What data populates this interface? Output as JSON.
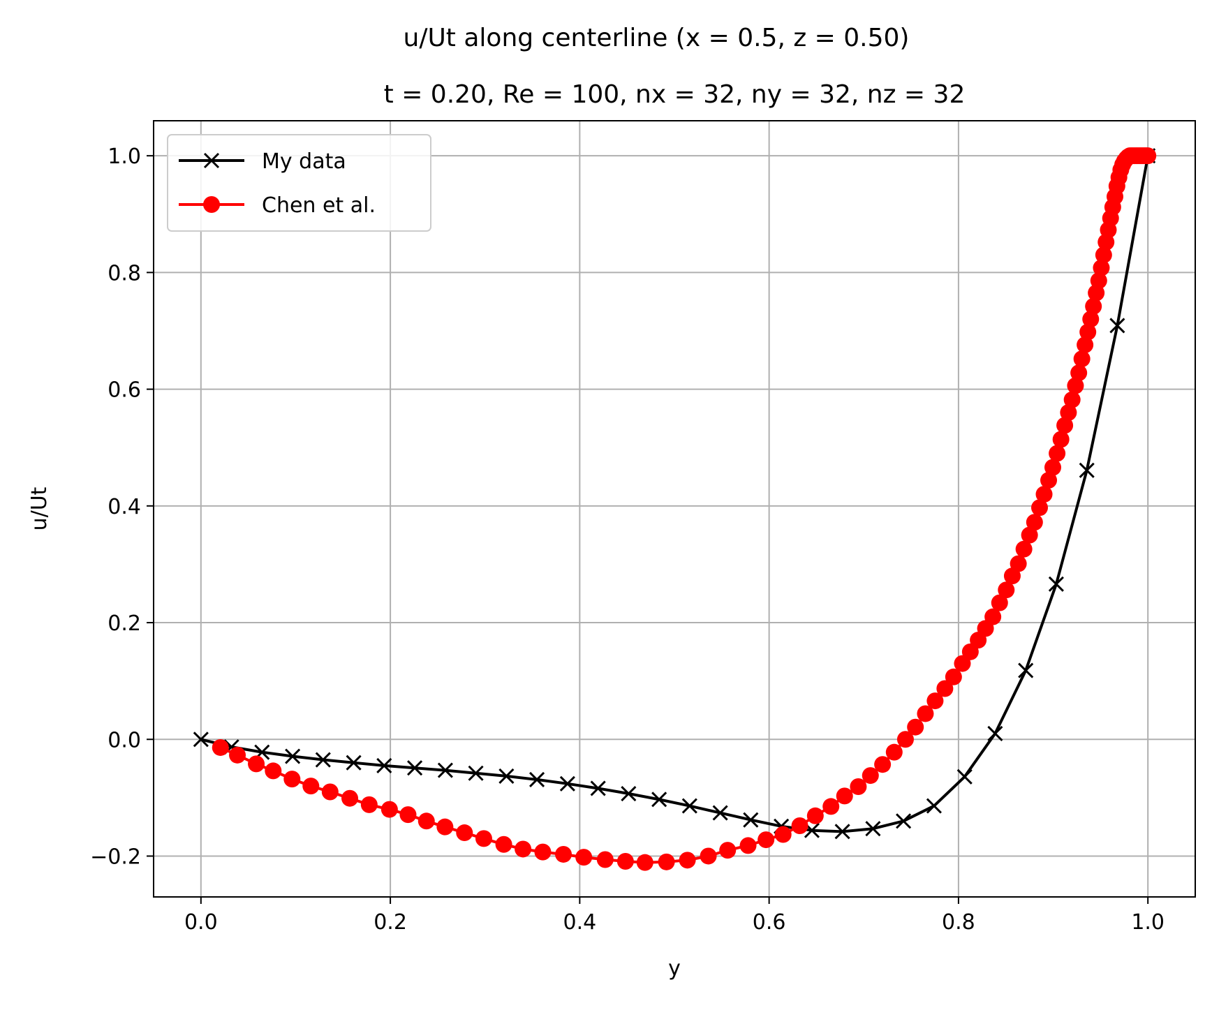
{
  "chart_data": {
    "type": "line",
    "title": "u/Ut along centerline (x = 0.5, z = 0.50)",
    "subtitle": "t = 0.20, Re = 100, nx = 32, ny = 32, nz = 32",
    "xlabel": "y",
    "ylabel": "u/Ut",
    "xlim": [
      -0.05,
      1.05
    ],
    "ylim": [
      -0.27,
      1.06
    ],
    "xticks": [
      0.0,
      0.2,
      0.4,
      0.6,
      0.8,
      1.0
    ],
    "xtick_labels": [
      "0.0",
      "0.2",
      "0.4",
      "0.6",
      "0.8",
      "1.0"
    ],
    "yticks": [
      -0.2,
      0.0,
      0.2,
      0.4,
      0.6,
      0.8,
      1.0
    ],
    "ytick_labels": [
      "−0.2",
      "0.0",
      "0.2",
      "0.4",
      "0.6",
      "0.8",
      "1.0"
    ],
    "grid": true,
    "legend_position": "top-left",
    "series": [
      {
        "name": "My data",
        "color": "#000000",
        "marker": "x",
        "x": [
          0.0,
          0.0323,
          0.0645,
          0.0968,
          0.129,
          0.1613,
          0.1935,
          0.2258,
          0.2581,
          0.2903,
          0.3226,
          0.3548,
          0.3871,
          0.4194,
          0.4516,
          0.4839,
          0.5161,
          0.5484,
          0.5806,
          0.6129,
          0.6452,
          0.6774,
          0.7097,
          0.7419,
          0.7742,
          0.8065,
          0.8387,
          0.871,
          0.9032,
          0.9355,
          0.9677,
          1.0
        ],
        "y": [
          0.0,
          -0.013,
          -0.022,
          -0.029,
          -0.035,
          -0.04,
          -0.045,
          -0.049,
          -0.053,
          -0.058,
          -0.063,
          -0.069,
          -0.076,
          -0.084,
          -0.093,
          -0.103,
          -0.114,
          -0.126,
          -0.138,
          -0.149,
          -0.156,
          -0.158,
          -0.153,
          -0.14,
          -0.114,
          -0.064,
          0.01,
          0.118,
          0.266,
          0.461,
          0.709,
          1.0
        ]
      },
      {
        "name": "Chen et al.",
        "color": "#ff0000",
        "marker": "o",
        "x": [
          0.0206,
          0.0385,
          0.0584,
          0.0763,
          0.0962,
          0.1161,
          0.1364,
          0.1572,
          0.1777,
          0.1991,
          0.2187,
          0.2381,
          0.2577,
          0.2783,
          0.2987,
          0.3198,
          0.3401,
          0.361,
          0.3828,
          0.4043,
          0.4269,
          0.4483,
          0.4689,
          0.4916,
          0.5137,
          0.5358,
          0.5562,
          0.5778,
          0.5967,
          0.6148,
          0.6324,
          0.6488,
          0.6653,
          0.6797,
          0.6942,
          0.707,
          0.7198,
          0.7321,
          0.744,
          0.7545,
          0.765,
          0.7753,
          0.7856,
          0.7948,
          0.8041,
          0.8125,
          0.8208,
          0.8285,
          0.8363,
          0.8434,
          0.8504,
          0.8568,
          0.8632,
          0.8691,
          0.875,
          0.8803,
          0.8856,
          0.8904,
          0.8952,
          0.8996,
          0.9041,
          0.9082,
          0.9122,
          0.9161,
          0.92,
          0.9235,
          0.927,
          0.9303,
          0.9336,
          0.9366,
          0.9396,
          0.9425,
          0.9454,
          0.9481,
          0.9508,
          0.9533,
          0.9558,
          0.9582,
          0.9606,
          0.9629,
          0.9652,
          0.9673,
          0.9694,
          0.9714,
          0.9734,
          0.9753,
          0.9772,
          0.979,
          0.9808,
          0.9826,
          0.9843,
          0.986,
          0.9877,
          0.9893,
          0.9909,
          0.9925,
          0.994,
          0.9956,
          0.9971,
          0.9986,
          1.0
        ],
        "y": [
          -0.014,
          -0.027,
          -0.042,
          -0.054,
          -0.068,
          -0.08,
          -0.09,
          -0.101,
          -0.112,
          -0.12,
          -0.129,
          -0.14,
          -0.15,
          -0.16,
          -0.17,
          -0.18,
          -0.188,
          -0.193,
          -0.197,
          -0.202,
          -0.206,
          -0.209,
          -0.211,
          -0.21,
          -0.207,
          -0.2,
          -0.19,
          -0.182,
          -0.172,
          -0.163,
          -0.148,
          -0.131,
          -0.115,
          -0.097,
          -0.081,
          -0.062,
          -0.043,
          -0.022,
          0.0,
          0.021,
          0.044,
          0.066,
          0.087,
          0.107,
          0.13,
          0.15,
          0.17,
          0.19,
          0.21,
          0.234,
          0.256,
          0.28,
          0.301,
          0.326,
          0.35,
          0.372,
          0.397,
          0.42,
          0.444,
          0.466,
          0.49,
          0.514,
          0.538,
          0.56,
          0.582,
          0.606,
          0.628,
          0.652,
          0.676,
          0.698,
          0.72,
          0.742,
          0.765,
          0.786,
          0.808,
          0.83,
          0.852,
          0.873,
          0.893,
          0.912,
          0.93,
          0.948,
          0.963,
          0.976,
          0.985,
          0.991,
          0.995,
          0.998,
          1.0,
          1.0,
          1.0,
          1.0,
          1.0,
          1.0,
          1.0,
          1.0,
          1.0,
          1.0,
          1.0,
          1.0,
          1.0
        ]
      }
    ]
  }
}
